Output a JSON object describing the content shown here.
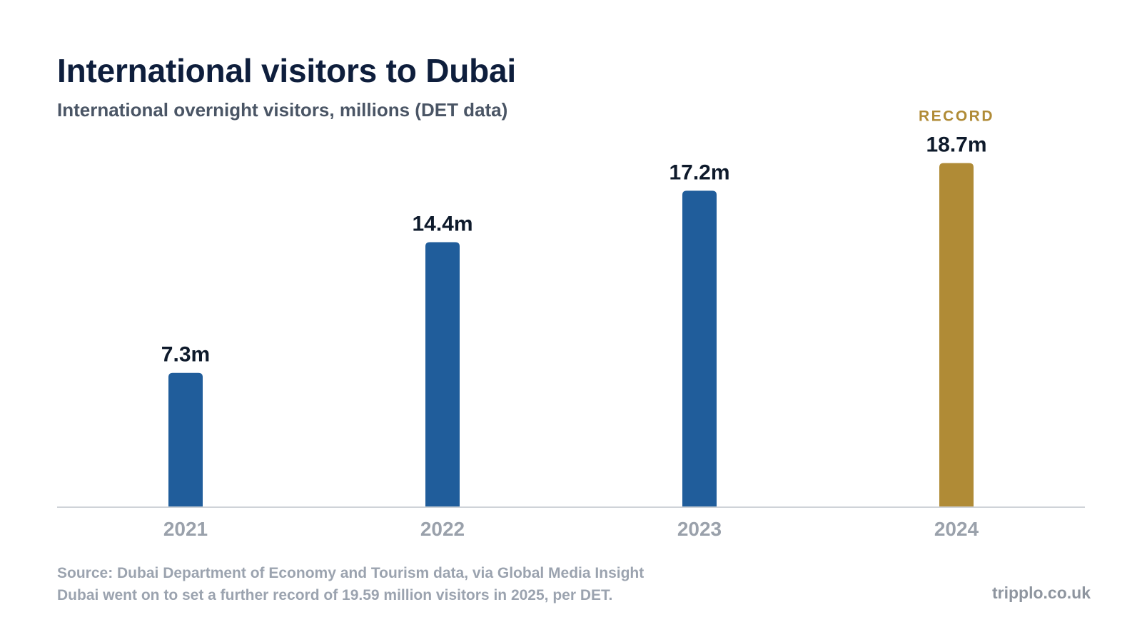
{
  "title": "International visitors to Dubai",
  "subtitle": "International overnight visitors, millions (DET data)",
  "footer": {
    "source": "Source: Dubai Department of Economy and Tourism data, via Global Media Insight",
    "note": "Dubai went on to set a further record of 19.59 million visitors in 2025, per DET.",
    "brand": "tripplo.co.uk"
  },
  "colors": {
    "bar": "#205d9b",
    "highlight": "#b08b36",
    "axis": "#cfd3d8",
    "tick_label": "#9aa1ab",
    "value_label": "#0e1a2b"
  },
  "chart_data": {
    "type": "bar",
    "categories": [
      "2021",
      "2022",
      "2023",
      "2024"
    ],
    "values": [
      7.3,
      14.4,
      17.2,
      18.7
    ],
    "value_labels": [
      "7.3m",
      "14.4m",
      "17.2m",
      "18.7m"
    ],
    "highlight_index": 3,
    "annotation": {
      "category": "2024",
      "text": "RECORD"
    },
    "ylim": [
      0,
      19.5
    ],
    "grid": false,
    "legend": "none"
  }
}
